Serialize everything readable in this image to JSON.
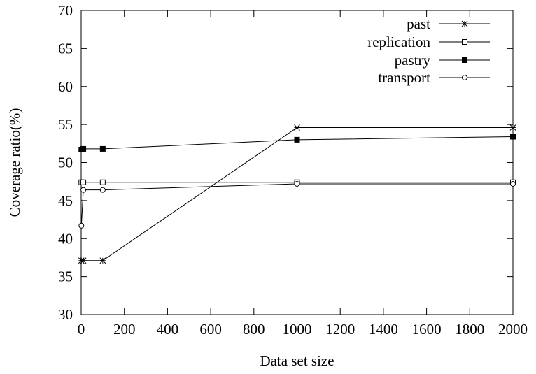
{
  "chart_data": {
    "type": "line",
    "title": "",
    "xlabel": "Data set size",
    "ylabel": "Coverage ratio(%)",
    "xlim": [
      0,
      2000
    ],
    "ylim": [
      30,
      70
    ],
    "xticks": [
      0,
      200,
      400,
      600,
      800,
      1000,
      1200,
      1400,
      1600,
      1800,
      2000
    ],
    "yticks": [
      30,
      35,
      40,
      45,
      50,
      55,
      60,
      65,
      70
    ],
    "grid": false,
    "legend_position": "top-right",
    "series": [
      {
        "name": "past",
        "marker": "asterisk",
        "x": [
          1,
          10,
          100,
          1000,
          2000
        ],
        "y": [
          37.1,
          37.1,
          37.1,
          54.6,
          54.6
        ]
      },
      {
        "name": "replication",
        "marker": "open-square",
        "x": [
          1,
          10,
          100,
          1000,
          2000
        ],
        "y": [
          47.4,
          47.4,
          47.4,
          47.4,
          47.4
        ]
      },
      {
        "name": "pastry",
        "marker": "filled-square",
        "x": [
          1,
          10,
          100,
          1000,
          2000
        ],
        "y": [
          51.7,
          51.8,
          51.8,
          53.0,
          53.4
        ]
      },
      {
        "name": "transport",
        "marker": "open-circle",
        "x": [
          1,
          10,
          100,
          1000,
          2000
        ],
        "y": [
          41.7,
          46.4,
          46.4,
          47.2,
          47.2
        ]
      }
    ]
  }
}
